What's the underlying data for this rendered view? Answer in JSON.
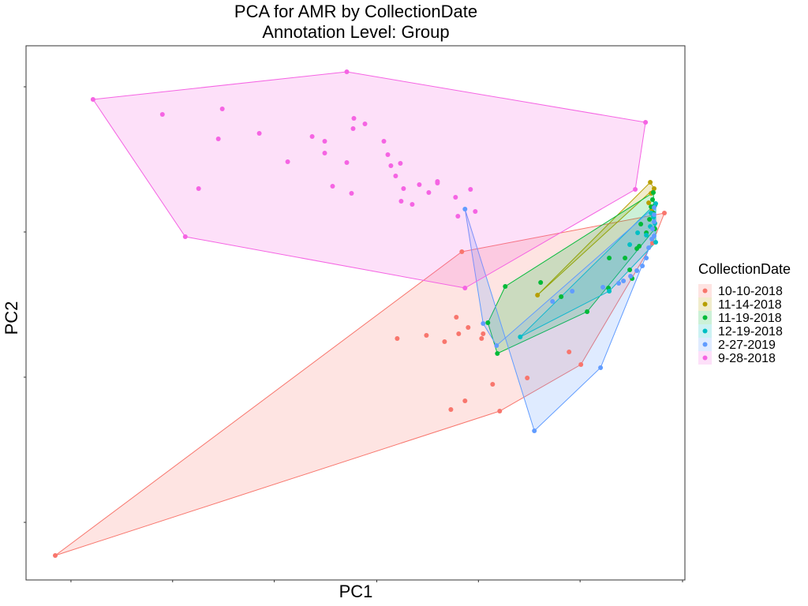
{
  "chart_data": {
    "type": "scatter",
    "title": "PCA for AMR by CollectionDate",
    "subtitle": "Annotation Level: Group",
    "xlabel": "PC1",
    "ylabel": "PC2",
    "xlim": [
      0,
      836
    ],
    "ylim": [
      0,
      677
    ],
    "x_tick_positions": [
      57,
      186,
      315,
      445,
      574,
      703,
      833
    ],
    "y_tick_positions": [
      73,
      257,
      441,
      625
    ],
    "grid": false,
    "legend": {
      "title": "CollectionDate",
      "position": "right"
    },
    "hull_fill_opacity": 0.2,
    "series": [
      {
        "name": "10-10-2018",
        "color": "#F8766D",
        "hull": [
          [
            37,
            31
          ],
          [
            553,
            416
          ],
          [
            810,
            465
          ],
          [
            795,
            427
          ],
          [
            704,
            273
          ],
          [
            601,
            214
          ]
        ],
        "points": [
          [
            37,
            31
          ],
          [
            553,
            416
          ],
          [
            810,
            465
          ],
          [
            795,
            427
          ],
          [
            704,
            273
          ],
          [
            601,
            214
          ],
          [
            471,
            306
          ],
          [
            508,
            310
          ],
          [
            531,
            302
          ],
          [
            546,
            333
          ],
          [
            549,
            312
          ],
          [
            561,
            320
          ],
          [
            578,
            306
          ],
          [
            580,
            312
          ],
          [
            689,
            289
          ],
          [
            636,
            256
          ],
          [
            592,
            248
          ],
          [
            557,
            227
          ],
          [
            539,
            216
          ]
        ]
      },
      {
        "name": "11-14-2018",
        "color": "#B79F00",
        "hull": [
          [
            649,
            361
          ],
          [
            792,
            504
          ],
          [
            797,
            496
          ]
        ],
        "points": [
          [
            649,
            361
          ],
          [
            792,
            504
          ],
          [
            797,
            496
          ],
          [
            793,
            490
          ],
          [
            790,
            478
          ],
          [
            794,
            470
          ]
        ]
      },
      {
        "name": "11-19-2018",
        "color": "#00BA38",
        "hull": [
          [
            598,
            287
          ],
          [
            586,
            326
          ],
          [
            608,
            372
          ],
          [
            796,
            491
          ],
          [
            798,
            445
          ],
          [
            712,
            340
          ]
        ],
        "points": [
          [
            598,
            287
          ],
          [
            586,
            326
          ],
          [
            608,
            372
          ],
          [
            796,
            491
          ],
          [
            798,
            445
          ],
          [
            712,
            340
          ],
          [
            653,
            377
          ],
          [
            679,
            359
          ],
          [
            740,
            408
          ],
          [
            760,
            408
          ],
          [
            766,
            393
          ],
          [
            778,
            423
          ],
          [
            787,
            440
          ],
          [
            791,
            457
          ],
          [
            793,
            473
          ],
          [
            795,
            482
          ],
          [
            796,
            465
          ],
          [
            798,
            475
          ],
          [
            780,
            451
          ],
          [
            775,
            420
          ],
          [
            739,
            370
          ],
          [
            769,
            382
          ]
        ]
      },
      {
        "name": "12-19-2018",
        "color": "#00BFC4",
        "hull": [
          [
            627,
            308
          ],
          [
            799,
            477
          ],
          [
            799,
            428
          ],
          [
            740,
            366
          ]
        ],
        "points": [
          [
            627,
            308
          ],
          [
            799,
            477
          ],
          [
            799,
            428
          ],
          [
            740,
            366
          ],
          [
            766,
            425
          ],
          [
            792,
            448
          ],
          [
            787,
            437
          ],
          [
            776,
            440
          ],
          [
            796,
            460
          ],
          [
            798,
            452
          ],
          [
            793,
            465
          ]
        ]
      },
      {
        "name": "2-27-2019",
        "color": "#619CFF",
        "hull": [
          [
            645,
            189
          ],
          [
            557,
            470
          ],
          [
            580,
            325
          ],
          [
            597,
            297
          ],
          [
            797,
            472
          ],
          [
            797,
            436
          ],
          [
            729,
            269
          ]
        ],
        "points": [
          [
            645,
            189
          ],
          [
            557,
            470
          ],
          [
            580,
            325
          ],
          [
            597,
            297
          ],
          [
            797,
            472
          ],
          [
            797,
            436
          ],
          [
            729,
            269
          ],
          [
            668,
            353
          ],
          [
            693,
            366
          ],
          [
            732,
            371
          ],
          [
            752,
            376
          ],
          [
            767,
            385
          ],
          [
            775,
            392
          ],
          [
            782,
            398
          ],
          [
            787,
            408
          ],
          [
            790,
            421
          ],
          [
            794,
            432
          ],
          [
            795,
            445
          ],
          [
            797,
            454
          ],
          [
            797,
            463
          ],
          [
            758,
            379
          ]
        ]
      },
      {
        "name": "9-28-2018",
        "color": "#F564E3",
        "hull": [
          [
            85,
            609
          ],
          [
            407,
            644
          ],
          [
            786,
            580
          ],
          [
            773,
            495
          ],
          [
            557,
            370
          ],
          [
            202,
            435
          ]
        ],
        "points": [
          [
            85,
            609
          ],
          [
            407,
            644
          ],
          [
            786,
            580
          ],
          [
            773,
            495
          ],
          [
            557,
            370
          ],
          [
            202,
            435
          ],
          [
            173,
            590
          ],
          [
            249,
            597
          ],
          [
            244,
            559
          ],
          [
            296,
            566
          ],
          [
            219,
            496
          ],
          [
            332,
            530
          ],
          [
            363,
            562
          ],
          [
            379,
            556
          ],
          [
            379,
            541
          ],
          [
            415,
            572
          ],
          [
            430,
            578
          ],
          [
            416,
            585
          ],
          [
            407,
            529
          ],
          [
            454,
            556
          ],
          [
            459,
            539
          ],
          [
            463,
            525
          ],
          [
            469,
            512
          ],
          [
            479,
            496
          ],
          [
            475,
            528
          ],
          [
            476,
            480
          ],
          [
            490,
            476
          ],
          [
            499,
            501
          ],
          [
            511,
            491
          ],
          [
            545,
            485
          ],
          [
            522,
            503
          ],
          [
            522,
            505
          ],
          [
            564,
            495
          ],
          [
            570,
            467
          ],
          [
            548,
            461
          ],
          [
            413,
            490
          ],
          [
            389,
            499
          ]
        ]
      }
    ]
  }
}
